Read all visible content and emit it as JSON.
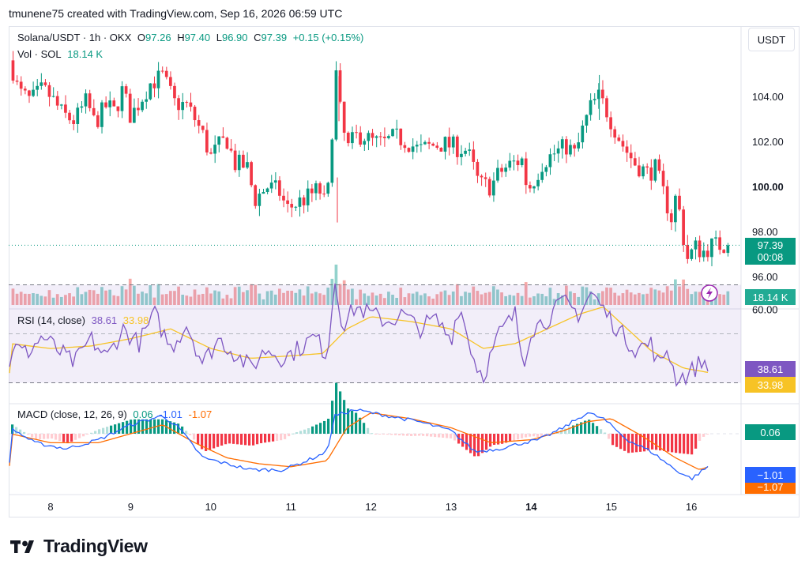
{
  "header": {
    "credit": "tmunene75 created with TradingView.com, Sep 16, 2026 06:59 UTC"
  },
  "unit_button": "USDT",
  "price_legend": {
    "symbol": "Solana/USDT · 1h · OKX",
    "o_label": "O",
    "o_value": "97.26",
    "h_label": "H",
    "h_value": "97.40",
    "l_label": "L",
    "l_value": "96.90",
    "c_label": "C",
    "c_value": "97.39",
    "change": "+0.15 (+0.15%)",
    "vol_label": "Vol · SOL",
    "vol_value": "18.14 K"
  },
  "rsi_legend": {
    "label": "RSI (14, close)",
    "rsi": "38.61",
    "ma": "33.98"
  },
  "macd_legend": {
    "label": "MACD (close, 12, 26, 9)",
    "hist": "0.06",
    "macd": "-1.01",
    "signal": "-1.07"
  },
  "price_axis_labels": [
    "104.00",
    "102.00",
    "100.00",
    "98.00",
    "96.00"
  ],
  "rsi_axis_labels": [
    "60.00"
  ],
  "tags": {
    "price": "97.39",
    "countdown": "00:08",
    "volume": "18.14 K",
    "rsi": "38.61",
    "rsi_ma": "33.98",
    "macd_hist": "0.06",
    "macd": "−1.01",
    "signal": "−1.07"
  },
  "brand": "TradingView",
  "colors": {
    "up": "#089981",
    "down": "#f23645",
    "rsi": "#7e57c2",
    "rsi_ma": "#f7c325",
    "macd": "#2962ff",
    "signal": "#ff6d00"
  },
  "chart_data": {
    "type": "candlestick",
    "x_ticks": [
      "8",
      "9",
      "10",
      "11",
      "12",
      "13",
      "14",
      "15",
      "16"
    ],
    "price_axis": {
      "ticks": [
        104,
        102,
        100,
        98,
        96
      ],
      "range": [
        95.6,
        106.0
      ]
    },
    "close_path": [
      [
        7.5,
        105.6
      ],
      [
        7.6,
        104.2
      ],
      [
        7.75,
        103.8
      ],
      [
        7.9,
        104.3
      ],
      [
        8.0,
        104.0
      ],
      [
        8.15,
        103.2
      ],
      [
        8.3,
        102.9
      ],
      [
        8.45,
        103.8
      ],
      [
        8.55,
        102.8
      ],
      [
        8.7,
        103.6
      ],
      [
        8.8,
        103.3
      ],
      [
        8.9,
        104.3
      ],
      [
        9.0,
        103.1
      ],
      [
        9.15,
        104.0
      ],
      [
        9.25,
        104.6
      ],
      [
        9.4,
        104.9
      ],
      [
        9.55,
        103.7
      ],
      [
        9.7,
        103.6
      ],
      [
        9.8,
        103.0
      ],
      [
        9.9,
        102.3
      ],
      [
        10.0,
        101.3
      ],
      [
        10.1,
        101.8
      ],
      [
        10.2,
        102.1
      ],
      [
        10.3,
        101.0
      ],
      [
        10.45,
        100.9
      ],
      [
        10.55,
        99.4
      ],
      [
        10.7,
        100.0
      ],
      [
        10.85,
        99.8
      ],
      [
        10.95,
        99.0
      ],
      [
        11.05,
        99.2
      ],
      [
        11.2,
        99.5
      ],
      [
        11.35,
        99.9
      ],
      [
        11.45,
        99.0
      ],
      [
        11.5,
        101.8
      ],
      [
        11.57,
        105.2
      ],
      [
        11.62,
        103.2
      ],
      [
        11.7,
        101.6
      ],
      [
        11.8,
        102.2
      ],
      [
        11.9,
        102.3
      ],
      [
        12.0,
        102.0
      ],
      [
        12.15,
        101.9
      ],
      [
        12.3,
        102.2
      ],
      [
        12.45,
        102.0
      ],
      [
        12.6,
        101.6
      ],
      [
        12.75,
        101.8
      ],
      [
        12.9,
        101.9
      ],
      [
        13.0,
        101.8
      ],
      [
        13.1,
        101.7
      ],
      [
        13.2,
        101.6
      ],
      [
        13.35,
        100.1
      ],
      [
        13.5,
        100.0
      ],
      [
        13.6,
        100.6
      ],
      [
        13.75,
        101.0
      ],
      [
        13.9,
        101.2
      ],
      [
        13.95,
        99.8
      ],
      [
        14.05,
        100.4
      ],
      [
        14.15,
        101.1
      ],
      [
        14.3,
        101.5
      ],
      [
        14.45,
        101.8
      ],
      [
        14.55,
        101.4
      ],
      [
        14.65,
        102.6
      ],
      [
        14.75,
        103.6
      ],
      [
        14.85,
        104.0
      ],
      [
        14.95,
        103.3
      ],
      [
        15.05,
        102.5
      ],
      [
        15.15,
        101.8
      ],
      [
        15.3,
        101.0
      ],
      [
        15.45,
        100.6
      ],
      [
        15.55,
        100.8
      ],
      [
        15.65,
        99.7
      ],
      [
        15.75,
        98.6
      ],
      [
        15.82,
        99.8
      ],
      [
        15.87,
        98.3
      ],
      [
        15.95,
        96.8
      ],
      [
        16.05,
        97.3
      ],
      [
        16.15,
        97.1
      ],
      [
        16.25,
        97.39
      ]
    ],
    "volume_series": "Vol · SOL",
    "rsi": {
      "ticks": [
        60
      ],
      "bands": [
        70,
        30
      ],
      "range": [
        25,
        75
      ],
      "path": [
        [
          7.5,
          45
        ],
        [
          7.7,
          42
        ],
        [
          7.9,
          49
        ],
        [
          8.1,
          43
        ],
        [
          8.3,
          38
        ],
        [
          8.5,
          48
        ],
        [
          8.7,
          40
        ],
        [
          8.9,
          52
        ],
        [
          9.1,
          46
        ],
        [
          9.3,
          58
        ],
        [
          9.5,
          44
        ],
        [
          9.7,
          54
        ],
        [
          9.9,
          38
        ],
        [
          10.1,
          48
        ],
        [
          10.3,
          42
        ],
        [
          10.5,
          36
        ],
        [
          10.7,
          44
        ],
        [
          10.9,
          40
        ],
        [
          11.1,
          44
        ],
        [
          11.3,
          49
        ],
        [
          11.45,
          41
        ],
        [
          11.55,
          72
        ],
        [
          11.65,
          53
        ],
        [
          11.8,
          61
        ],
        [
          12.0,
          58
        ],
        [
          12.2,
          55
        ],
        [
          12.4,
          58
        ],
        [
          12.6,
          52
        ],
        [
          12.8,
          56
        ],
        [
          13.0,
          48
        ],
        [
          13.1,
          62
        ],
        [
          13.3,
          38
        ],
        [
          13.4,
          33
        ],
        [
          13.6,
          50
        ],
        [
          13.8,
          58
        ],
        [
          13.9,
          38
        ],
        [
          14.0,
          52
        ],
        [
          14.2,
          56
        ],
        [
          14.4,
          63
        ],
        [
          14.6,
          58
        ],
        [
          14.75,
          67
        ],
        [
          14.9,
          60
        ],
        [
          15.1,
          51
        ],
        [
          15.3,
          44
        ],
        [
          15.5,
          46
        ],
        [
          15.6,
          36
        ],
        [
          15.7,
          45
        ],
        [
          15.8,
          32
        ],
        [
          15.95,
          33
        ],
        [
          16.1,
          38
        ],
        [
          16.25,
          38.61
        ]
      ],
      "ma_path": [
        [
          7.5,
          46
        ],
        [
          8.0,
          44
        ],
        [
          8.5,
          45
        ],
        [
          9.0,
          48
        ],
        [
          9.5,
          52
        ],
        [
          10.0,
          44
        ],
        [
          10.5,
          40
        ],
        [
          11.0,
          41
        ],
        [
          11.4,
          42
        ],
        [
          11.7,
          52
        ],
        [
          12.0,
          57
        ],
        [
          12.5,
          55
        ],
        [
          13.0,
          52
        ],
        [
          13.4,
          44
        ],
        [
          13.8,
          46
        ],
        [
          14.2,
          52
        ],
        [
          14.6,
          58
        ],
        [
          14.9,
          61
        ],
        [
          15.2,
          52
        ],
        [
          15.5,
          43
        ],
        [
          15.9,
          36
        ],
        [
          16.25,
          33.98
        ]
      ]
    },
    "macd": {
      "path": [
        [
          7.5,
          0.2
        ],
        [
          7.8,
          -0.3
        ],
        [
          8.2,
          -0.5
        ],
        [
          8.6,
          -0.2
        ],
        [
          9.0,
          0.3
        ],
        [
          9.4,
          0.6
        ],
        [
          9.6,
          0.2
        ],
        [
          9.9,
          -0.8
        ],
        [
          10.2,
          -1.0
        ],
        [
          10.5,
          -1.2
        ],
        [
          10.9,
          -1.2
        ],
        [
          11.2,
          -0.9
        ],
        [
          11.45,
          -0.6
        ],
        [
          11.55,
          0.6
        ],
        [
          11.8,
          0.8
        ],
        [
          12.2,
          0.6
        ],
        [
          12.6,
          0.4
        ],
        [
          13.0,
          0.1
        ],
        [
          13.3,
          -0.6
        ],
        [
          13.6,
          -0.5
        ],
        [
          13.9,
          -0.3
        ],
        [
          14.1,
          -0.2
        ],
        [
          14.4,
          0.2
        ],
        [
          14.7,
          0.7
        ],
        [
          14.9,
          0.5
        ],
        [
          15.2,
          -0.2
        ],
        [
          15.5,
          -0.6
        ],
        [
          15.8,
          -1.2
        ],
        [
          16.0,
          -1.5
        ],
        [
          16.25,
          -1.01
        ]
      ],
      "signal_path": [
        [
          7.5,
          0.0
        ],
        [
          8.0,
          -0.3
        ],
        [
          8.6,
          -0.3
        ],
        [
          9.0,
          0.0
        ],
        [
          9.4,
          0.3
        ],
        [
          9.8,
          -0.3
        ],
        [
          10.2,
          -0.8
        ],
        [
          10.6,
          -1.0
        ],
        [
          11.0,
          -1.1
        ],
        [
          11.45,
          -0.9
        ],
        [
          11.7,
          0.2
        ],
        [
          12.0,
          0.7
        ],
        [
          12.5,
          0.5
        ],
        [
          13.0,
          0.2
        ],
        [
          13.5,
          -0.3
        ],
        [
          14.0,
          -0.2
        ],
        [
          14.4,
          0.1
        ],
        [
          14.7,
          0.4
        ],
        [
          15.0,
          0.5
        ],
        [
          15.4,
          -0.1
        ],
        [
          15.8,
          -0.8
        ],
        [
          16.1,
          -1.2
        ],
        [
          16.25,
          -1.07
        ]
      ]
    }
  }
}
